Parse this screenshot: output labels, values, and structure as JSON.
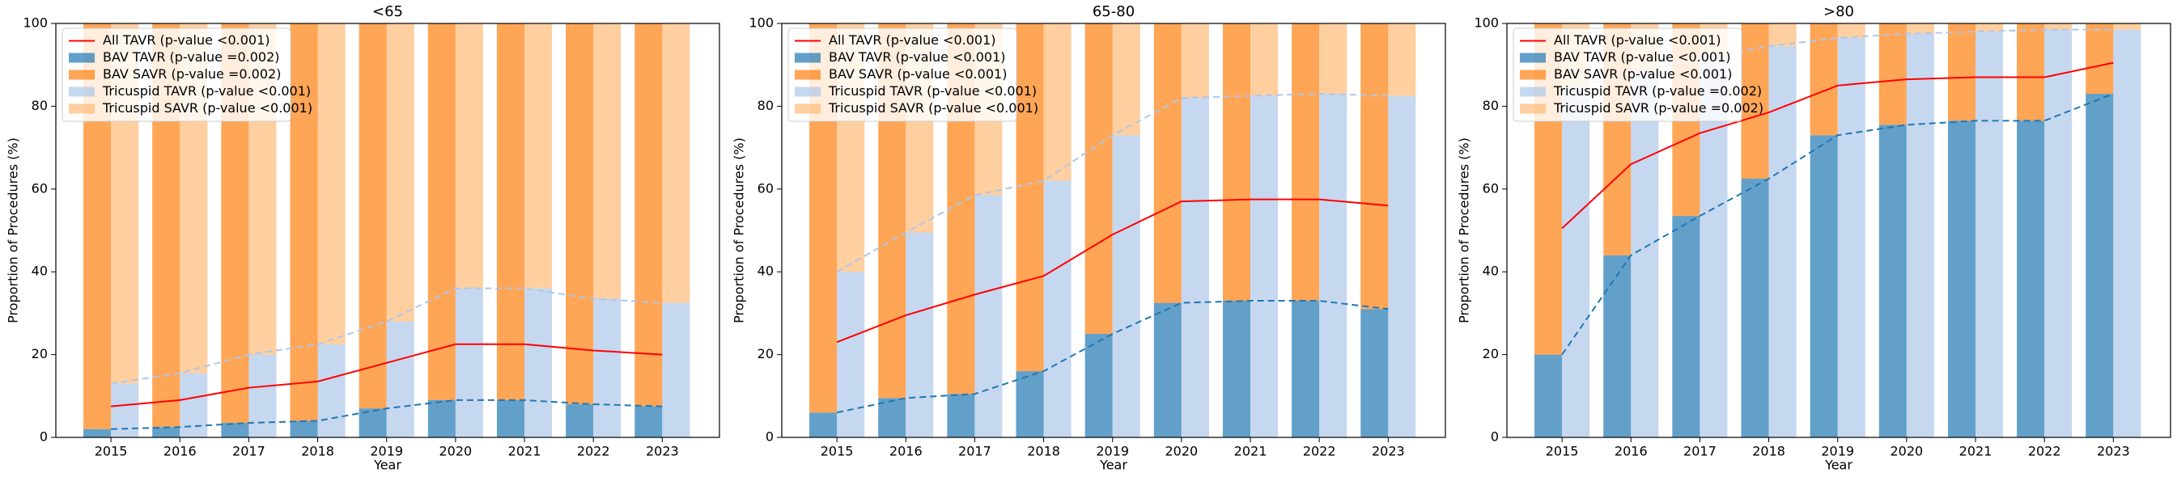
{
  "chart_data": [
    {
      "type": "bar",
      "title": "<65",
      "x_label": "Year",
      "y_label": "Proportion of Procedures (%)",
      "x": [
        2015,
        2016,
        2017,
        2018,
        2019,
        2020,
        2021,
        2022,
        2023
      ],
      "xlim": [
        2014.2,
        2023.83
      ],
      "xticks": [
        2015,
        2016,
        2017,
        2018,
        2019,
        2020,
        2021,
        2022,
        2023
      ],
      "ylim": [
        0,
        100
      ],
      "yticks": [
        0,
        20,
        40,
        60,
        80,
        100
      ],
      "legend": "upper left",
      "bar_alpha": 0.7,
      "series": [
        {
          "name": "All TAVR (p-value <0.001)",
          "type": "line",
          "color": "#ff0000",
          "values": [
            7.5,
            9,
            12,
            13.5,
            18,
            22.5,
            22.5,
            21,
            20
          ]
        },
        {
          "name": "BAV TAVR (p-value =0.002)",
          "type": "bar",
          "color": "#1f77b4",
          "values": [
            2,
            2.5,
            3.5,
            4,
            7,
            9,
            9,
            8,
            7.5
          ]
        },
        {
          "name": "BAV SAVR (p-value =0.002)",
          "type": "bar",
          "color": "#ff7f0e",
          "values": [
            98,
            97.5,
            96.5,
            96,
            93,
            91,
            91,
            92,
            92.5
          ]
        },
        {
          "name": "Tricuspid TAVR (p-value <0.001)",
          "type": "bar",
          "color": "#aec7e8",
          "values": [
            13,
            15.5,
            20,
            22.5,
            28,
            36,
            36,
            33.5,
            32.5
          ]
        },
        {
          "name": "Tricuspid SAVR (p-value <0.001)",
          "type": "bar",
          "color": "#ffbb78",
          "values": [
            87,
            84.5,
            80,
            77.5,
            72,
            64,
            64,
            66.5,
            67.5
          ]
        }
      ]
    },
    {
      "type": "bar",
      "title": "65-80",
      "x_label": "Year",
      "y_label": "Proportion of Procedures (%)",
      "x": [
        2015,
        2016,
        2017,
        2018,
        2019,
        2020,
        2021,
        2022,
        2023
      ],
      "xlim": [
        2014.2,
        2023.83
      ],
      "xticks": [
        2015,
        2016,
        2017,
        2018,
        2019,
        2020,
        2021,
        2022,
        2023
      ],
      "ylim": [
        0,
        100
      ],
      "yticks": [
        0,
        20,
        40,
        60,
        80,
        100
      ],
      "legend": "upper left",
      "bar_alpha": 0.7,
      "series": [
        {
          "name": "All TAVR (p-value <0.001)",
          "type": "line",
          "color": "#ff0000",
          "values": [
            23,
            29.5,
            34.5,
            39,
            49,
            57,
            57.5,
            57.5,
            56
          ]
        },
        {
          "name": "BAV TAVR (p-value <0.001)",
          "type": "bar",
          "color": "#1f77b4",
          "values": [
            6,
            9.5,
            10.5,
            16,
            25,
            32.5,
            33,
            33,
            31
          ]
        },
        {
          "name": "BAV SAVR (p-value <0.001)",
          "type": "bar",
          "color": "#ff7f0e",
          "values": [
            94,
            90.5,
            89.5,
            84,
            75,
            67.5,
            67,
            67,
            69
          ]
        },
        {
          "name": "Tricuspid TAVR (p-value <0.001)",
          "type": "bar",
          "color": "#aec7e8",
          "values": [
            40,
            49.5,
            58.5,
            62,
            73,
            82,
            82.5,
            83,
            82.5
          ]
        },
        {
          "name": "Tricuspid SAVR (p-value <0.001)",
          "type": "bar",
          "color": "#ffbb78",
          "values": [
            60,
            50.5,
            41.5,
            38,
            27,
            18,
            17.5,
            17,
            17.5
          ]
        }
      ]
    },
    {
      "type": "bar",
      "title": ">80",
      "x_label": "Year",
      "y_label": "Proportion of Procedures (%)",
      "x": [
        2015,
        2016,
        2017,
        2018,
        2019,
        2020,
        2021,
        2022,
        2023
      ],
      "xlim": [
        2014.2,
        2023.83
      ],
      "xticks": [
        2015,
        2016,
        2017,
        2018,
        2019,
        2020,
        2021,
        2022,
        2023
      ],
      "ylim": [
        0,
        100
      ],
      "yticks": [
        0,
        20,
        40,
        60,
        80,
        100
      ],
      "legend": "upper left",
      "bar_alpha": 0.7,
      "series": [
        {
          "name": "All TAVR (p-value <0.001)",
          "type": "line",
          "color": "#ff0000",
          "values": [
            50.5,
            66,
            73.5,
            78.5,
            85,
            86.5,
            87,
            87,
            90.5
          ]
        },
        {
          "name": "BAV TAVR (p-value <0.001)",
          "type": "bar",
          "color": "#1f77b4",
          "values": [
            20,
            44,
            53.5,
            62.5,
            73,
            75.5,
            76.5,
            76.5,
            83
          ]
        },
        {
          "name": "BAV SAVR (p-value <0.001)",
          "type": "bar",
          "color": "#ff7f0e",
          "values": [
            80,
            56,
            46.5,
            37.5,
            27,
            24.5,
            23.5,
            23.5,
            17
          ]
        },
        {
          "name": "Tricuspid TAVR (p-value =0.002)",
          "type": "bar",
          "color": "#aec7e8",
          "values": [
            84,
            88,
            91.5,
            94.5,
            96.5,
            97.5,
            98,
            98.5,
            98.5
          ]
        },
        {
          "name": "Tricuspid SAVR (p-value =0.002)",
          "type": "bar",
          "color": "#ffbb78",
          "values": [
            16,
            12,
            8.5,
            5.5,
            3.5,
            2.5,
            2,
            1.5,
            1.5
          ]
        }
      ]
    }
  ]
}
